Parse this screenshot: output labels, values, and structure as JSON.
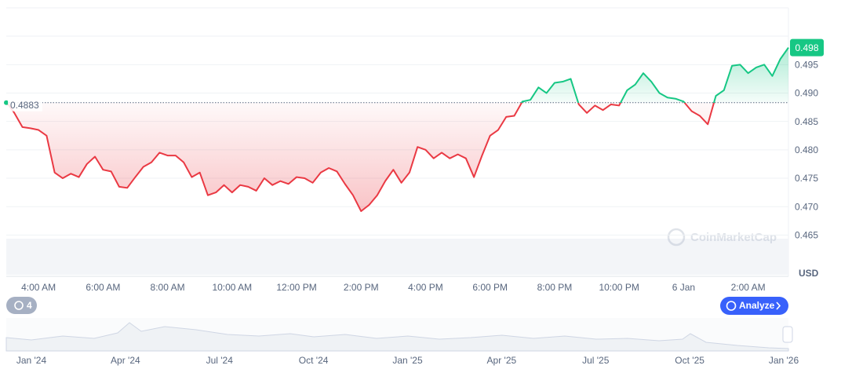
{
  "chart_data": {
    "type": "line",
    "categories": [
      null,
      null,
      null,
      null,
      "4:00 AM",
      null,
      null,
      null,
      null,
      null,
      null,
      null,
      "6:00 AM",
      null,
      null,
      null,
      null,
      null,
      null,
      null,
      "8:00 AM",
      null,
      null,
      null,
      null,
      null,
      null,
      null,
      "10:00 AM",
      null,
      null,
      null,
      null,
      null,
      null,
      null,
      "12:00 PM",
      null,
      null,
      null,
      null,
      null,
      null,
      null,
      "2:00 PM",
      null,
      null,
      null,
      null,
      null,
      null,
      null,
      "4:00 PM",
      null,
      null,
      null,
      null,
      null,
      null,
      null,
      "6:00 PM",
      null,
      null,
      null,
      null,
      null,
      null,
      null,
      "8:00 PM",
      null,
      null,
      null,
      null,
      null,
      null,
      null,
      "10:00 PM",
      null,
      null,
      null,
      null,
      null,
      null,
      null,
      "6 Jan",
      null,
      null,
      null,
      null,
      null,
      null,
      null,
      "2:00 AM",
      null,
      null,
      null,
      null,
      null
    ],
    "values": [
      0.4885,
      0.4865,
      0.484,
      0.4838,
      0.4835,
      0.4825,
      0.476,
      0.475,
      0.4758,
      0.4752,
      0.4775,
      0.4788,
      0.4765,
      0.4762,
      0.4735,
      0.4733,
      0.4752,
      0.477,
      0.4778,
      0.4795,
      0.479,
      0.479,
      0.4778,
      0.4752,
      0.476,
      0.472,
      0.4725,
      0.4738,
      0.4725,
      0.4738,
      0.4735,
      0.4728,
      0.475,
      0.4738,
      0.4745,
      0.474,
      0.4752,
      0.475,
      0.4742,
      0.476,
      0.4768,
      0.4762,
      0.474,
      0.472,
      0.4692,
      0.4703,
      0.472,
      0.4745,
      0.4765,
      0.4742,
      0.476,
      0.4805,
      0.48,
      0.4785,
      0.4795,
      0.4785,
      0.4792,
      0.4785,
      0.4752,
      0.479,
      0.4825,
      0.4835,
      0.4858,
      0.486,
      0.4885,
      0.4888,
      0.491,
      0.49,
      0.4918,
      0.492,
      0.4925,
      0.488,
      0.4865,
      0.4878,
      0.487,
      0.488,
      0.4878,
      0.4905,
      0.4915,
      0.4935,
      0.492,
      0.49,
      0.4892,
      0.489,
      0.4885,
      0.4868,
      0.486,
      0.4845,
      0.4895,
      0.4905,
      0.4948,
      0.495,
      0.4935,
      0.4945,
      0.495,
      0.493,
      0.496,
      0.498
    ],
    "baseline": 0.4883,
    "current_price": 0.498,
    "above_color": "#16c784",
    "below_color": "#ea3943",
    "ylim": [
      0.458,
      0.505
    ],
    "yticks": [
      0.465,
      {
        "value": 0.47,
        "label": "0.470"
      },
      0.475,
      {
        "value": 0.48,
        "label": "0.480"
      },
      0.485,
      {
        "value": 0.49,
        "label": "0.490"
      },
      0.495
    ],
    "grid": true,
    "currency_label": "USD"
  },
  "ui": {
    "watermark": "CoinMarketCap",
    "events_badge": "4",
    "analyze_button": "Analyze"
  },
  "navigator": {
    "labels": [
      "Jan '24",
      "Apr '24",
      "Jul '24",
      "Oct '24",
      "Jan '25",
      "Apr '25",
      "Jul '25",
      "Oct '25",
      "Jan '26"
    ]
  }
}
